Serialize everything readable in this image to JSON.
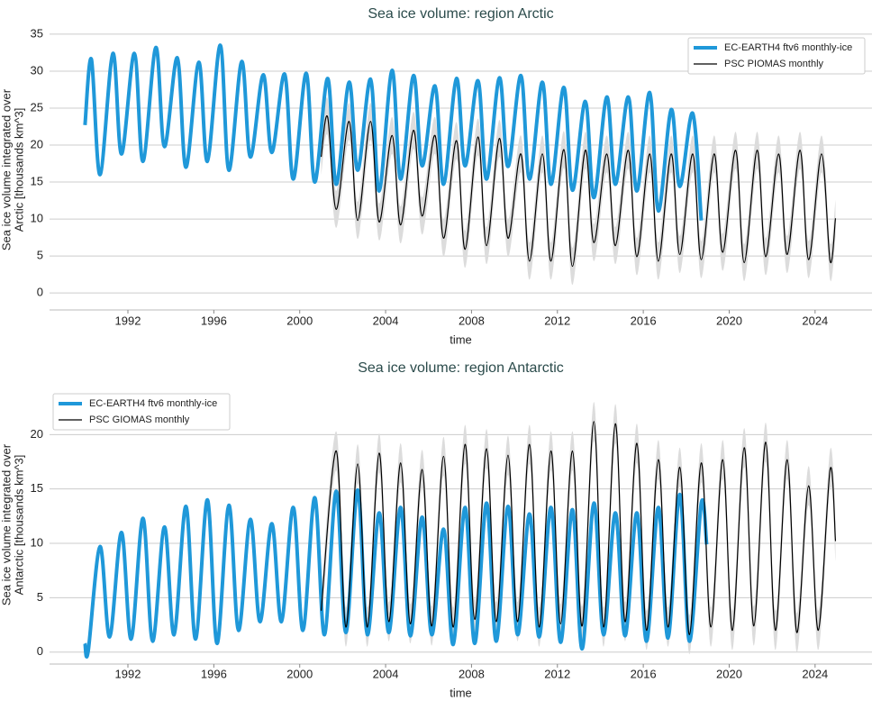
{
  "chart_data": [
    {
      "type": "line",
      "title": "Sea ice volume: region Arctic",
      "xlabel": "time",
      "ylabel": [
        "Sea ice volume integrated over",
        "Arctic [thousands km^3]"
      ],
      "xlim": [
        1988.35,
        2026.65
      ],
      "xticks": [
        1992,
        1996,
        2000,
        2004,
        2008,
        2012,
        2016,
        2020,
        2024
      ],
      "ylim": [
        -2.3,
        35.6
      ],
      "yticks": [
        0,
        5,
        10,
        15,
        20,
        25,
        30,
        35
      ],
      "grid": true,
      "legend": "upper right",
      "series": [
        {
          "name": "EC-EARTH4 ftv6 monthly-ice",
          "color": "#1f98d9",
          "x": [
            1990.0,
            1990.3,
            1990.7,
            1991.3,
            1991.7,
            1992.3,
            1992.7,
            1993.3,
            1993.7,
            1994.3,
            1994.7,
            1995.3,
            1995.7,
            1996.3,
            1996.7,
            1997.3,
            1997.7,
            1998.3,
            1998.7,
            1999.3,
            1999.7,
            2000.3,
            2000.7,
            2001.3,
            2001.7,
            2002.3,
            2002.7,
            2003.3,
            2003.7,
            2004.3,
            2004.7,
            2005.3,
            2005.7,
            2006.3,
            2006.7,
            2007.3,
            2007.7,
            2008.3,
            2008.7,
            2009.3,
            2009.7,
            2010.3,
            2010.7,
            2011.3,
            2011.7,
            2012.3,
            2012.7,
            2013.3,
            2013.7,
            2014.3,
            2014.7,
            2015.3,
            2015.7,
            2016.3,
            2016.7,
            2017.3,
            2017.7,
            2018.3,
            2018.7
          ],
          "values": [
            22.7,
            31.6,
            16.0,
            32.4,
            18.8,
            32.4,
            17.8,
            33.2,
            19.8,
            31.8,
            17.0,
            31.2,
            17.8,
            33.5,
            16.6,
            31.3,
            18.4,
            29.5,
            19.0,
            29.6,
            15.4,
            29.7,
            15.0,
            29.0,
            14.7,
            28.5,
            16.6,
            28.9,
            13.8,
            30.1,
            15.4,
            29.4,
            17.2,
            28.0,
            14.7,
            29.0,
            17.2,
            28.7,
            15.4,
            29.1,
            17.1,
            29.4,
            15.4,
            28.5,
            14.7,
            27.8,
            13.9,
            25.9,
            12.9,
            26.5,
            14.7,
            26.5,
            13.8,
            27.1,
            11.1,
            24.8,
            14.4,
            24.3,
            9.8
          ]
        },
        {
          "name": "PSC PIOMAS monthly",
          "color": "#000000",
          "uncertainty": 2.5,
          "band_color": "#dcdcdc",
          "x": [
            2001.0,
            2001.3,
            2001.7,
            2002.3,
            2002.7,
            2003.3,
            2003.7,
            2004.3,
            2004.7,
            2005.3,
            2005.7,
            2006.3,
            2006.7,
            2007.3,
            2007.7,
            2008.3,
            2008.7,
            2009.3,
            2009.7,
            2010.3,
            2010.7,
            2011.3,
            2011.7,
            2012.3,
            2012.7,
            2013.3,
            2013.7,
            2014.3,
            2014.7,
            2015.3,
            2015.7,
            2016.3,
            2016.7,
            2017.3,
            2017.7,
            2018.3,
            2018.7,
            2019.3,
            2019.7,
            2020.3,
            2020.7,
            2021.3,
            2021.7,
            2022.3,
            2022.7,
            2023.3,
            2023.7,
            2024.3,
            2024.7,
            2024.95
          ],
          "values": [
            18.4,
            23.8,
            11.3,
            23.2,
            9.8,
            23.2,
            9.6,
            21.3,
            9.2,
            22.0,
            10.4,
            21.3,
            7.4,
            20.6,
            5.9,
            21.1,
            6.4,
            20.9,
            7.4,
            18.8,
            4.3,
            18.8,
            4.3,
            19.4,
            3.6,
            19.3,
            6.8,
            18.8,
            6.4,
            19.3,
            4.9,
            18.8,
            4.3,
            18.8,
            5.2,
            18.8,
            4.5,
            18.8,
            5.5,
            19.3,
            4.1,
            19.3,
            4.9,
            18.8,
            5.2,
            19.3,
            4.5,
            18.8,
            4.3,
            10.1
          ]
        }
      ]
    },
    {
      "type": "line",
      "title": "Sea ice volume: region Antarctic",
      "xlabel": "time",
      "ylabel": [
        "Sea ice volume integrated over",
        "Antarctic [thousands km^3]"
      ],
      "xlim": [
        1988.35,
        2026.65
      ],
      "xticks": [
        1992,
        1996,
        2000,
        2004,
        2008,
        2012,
        2016,
        2020,
        2024
      ],
      "ylim": [
        -1.1,
        24.5
      ],
      "yticks": [
        0,
        5,
        10,
        15,
        20
      ],
      "grid": true,
      "legend": "upper left",
      "series": [
        {
          "name": "EC-EARTH4 ftv6 monthly-ice",
          "color": "#1f98d9",
          "x": [
            1990.0,
            1990.15,
            1990.7,
            1991.15,
            1991.7,
            1992.15,
            1992.7,
            1993.15,
            1993.7,
            1994.15,
            1994.7,
            1995.15,
            1995.7,
            1996.15,
            1996.7,
            1997.15,
            1997.7,
            1998.15,
            1998.7,
            1999.15,
            1999.7,
            2000.15,
            2000.7,
            2001.15,
            2001.7,
            2002.15,
            2002.7,
            2003.15,
            2003.7,
            2004.15,
            2004.7,
            2005.15,
            2005.7,
            2006.15,
            2006.7,
            2007.15,
            2007.7,
            2008.15,
            2008.7,
            2009.15,
            2009.7,
            2010.15,
            2010.7,
            2011.15,
            2011.7,
            2012.15,
            2012.7,
            2013.15,
            2013.7,
            2014.15,
            2014.7,
            2015.15,
            2015.7,
            2016.15,
            2016.7,
            2017.15,
            2017.7,
            2018.15,
            2018.7,
            2018.95
          ],
          "values": [
            0.8,
            0.1,
            9.7,
            1.4,
            11.0,
            1.2,
            12.3,
            1.0,
            11.5,
            1.6,
            13.4,
            1.2,
            14.0,
            0.8,
            13.5,
            2.0,
            12.2,
            2.8,
            11.8,
            2.8,
            13.3,
            2.0,
            14.2,
            1.6,
            14.8,
            1.8,
            14.9,
            1.6,
            12.8,
            1.8,
            13.3,
            1.5,
            12.4,
            1.6,
            11.3,
            0.7,
            13.3,
            0.8,
            13.7,
            1.0,
            13.4,
            1.6,
            12.7,
            1.4,
            13.3,
            0.9,
            13.1,
            0.3,
            13.7,
            1.6,
            12.8,
            1.5,
            12.8,
            1.0,
            13.3,
            1.3,
            14.5,
            1.0,
            13.7,
            9.9
          ]
        },
        {
          "name": "PSC GIOMAS monthly",
          "color": "#000000",
          "uncertainty": 1.8,
          "band_color": "#dcdcdc",
          "x": [
            2001.0,
            2001.7,
            2002.15,
            2002.7,
            2003.15,
            2003.7,
            2004.15,
            2004.7,
            2005.15,
            2005.7,
            2006.15,
            2006.7,
            2007.15,
            2007.7,
            2008.15,
            2008.7,
            2009.15,
            2009.7,
            2010.15,
            2010.7,
            2011.15,
            2011.7,
            2012.15,
            2012.7,
            2013.15,
            2013.7,
            2014.15,
            2014.7,
            2015.15,
            2015.7,
            2016.15,
            2016.7,
            2017.15,
            2017.7,
            2018.15,
            2018.7,
            2019.15,
            2019.7,
            2020.15,
            2020.7,
            2021.15,
            2021.7,
            2022.15,
            2022.7,
            2023.15,
            2023.7,
            2024.15,
            2024.7,
            2024.95
          ],
          "values": [
            3.8,
            18.5,
            2.3,
            17.3,
            2.3,
            18.3,
            2.8,
            17.4,
            2.6,
            16.8,
            2.4,
            18.0,
            2.3,
            19.1,
            3.0,
            18.7,
            2.8,
            18.1,
            2.8,
            19.1,
            2.3,
            18.5,
            2.6,
            18.5,
            2.4,
            21.2,
            2.3,
            21.0,
            2.8,
            19.2,
            2.0,
            17.7,
            2.3,
            17.0,
            1.6,
            17.4,
            2.3,
            17.7,
            2.0,
            18.8,
            2.4,
            19.3,
            2.0,
            17.7,
            1.8,
            15.3,
            2.0,
            16.8,
            10.2
          ]
        }
      ]
    }
  ]
}
